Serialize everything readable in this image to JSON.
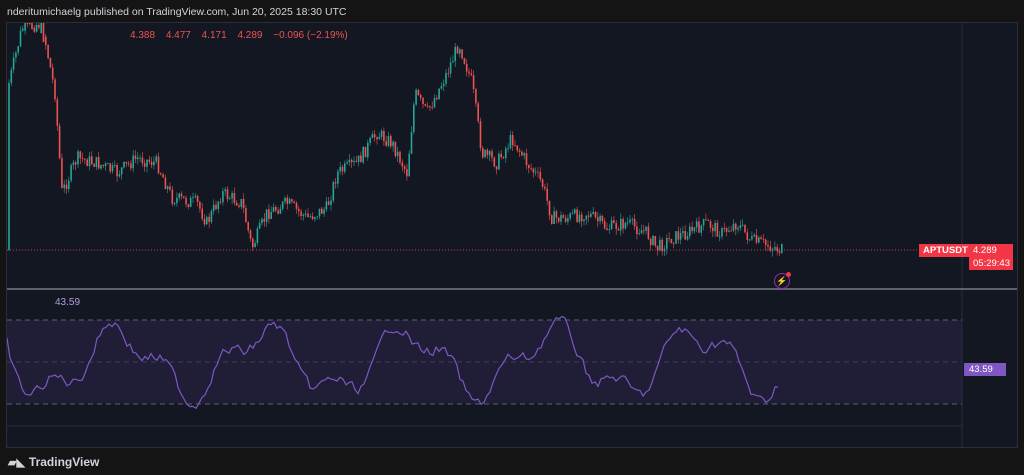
{
  "header": {
    "published_text": "nderitumichaelg published on TradingView.com, Jun 20, 2025 18:30 UTC"
  },
  "ohlc": {
    "open": "4.388",
    "high": "4.477",
    "low": "4.171",
    "close": "4.289",
    "change": "−0.096 (−2.19%)"
  },
  "symbol": "APTUSDT",
  "price_label": "4.289",
  "countdown": "05:29:43",
  "rsi": {
    "value_label": "43.59",
    "axis_label": "43.59"
  },
  "colors": {
    "up": "#26a69a",
    "down": "#ef5350",
    "rsi_line": "#7e57c2",
    "rsi_band": "#2a2447"
  },
  "footer": {
    "brand": "TradingView",
    "logo_icon": "tradingview-logo-icon"
  }
}
